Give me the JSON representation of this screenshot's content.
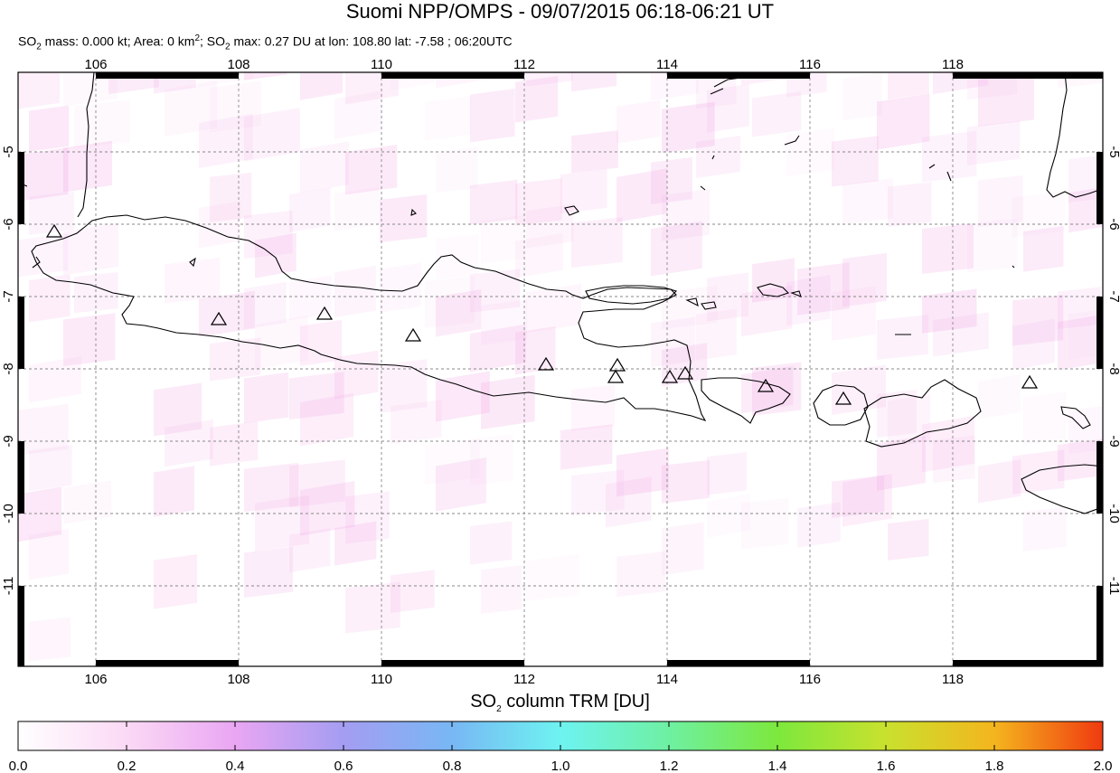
{
  "title": "Suomi NPP/OMPS - 09/07/2015 06:18-06:21 UT",
  "subtitle": {
    "mass_prefix": "SO",
    "mass_sub": "2",
    "mass_text": " mass: 0.000 kt; Area: 0 km",
    "area_sup": "2",
    "max_prefix": "; SO",
    "max_sub": "2",
    "max_text": " max: 0.27 DU at lon: 108.80 lat: -7.58 ; 06:20UTC"
  },
  "map": {
    "lon_labels": [
      "106",
      "108",
      "110",
      "112",
      "114",
      "116",
      "118"
    ],
    "lat_labels": [
      "-5",
      "-6",
      "-7",
      "-8",
      "-9",
      "-10",
      "-11"
    ],
    "volcano_marker": "triangle-icon",
    "land_outline_color": "#000000",
    "grid_color": "#888888"
  },
  "colorbar": {
    "title_prefix": "SO",
    "title_sub": "2",
    "title_text": " column TRM [DU]",
    "tick_labels": [
      "0.0",
      "0.2",
      "0.4",
      "0.6",
      "0.8",
      "1.0",
      "1.2",
      "1.4",
      "1.6",
      "1.8",
      "2.0"
    ],
    "colors": [
      "#ffffff",
      "#fbd9f5",
      "#e9a6f3",
      "#a49df2",
      "#78b7f4",
      "#6ef3f1",
      "#6ef0a2",
      "#7de83d",
      "#c9e12e",
      "#f4b51e",
      "#f03a10"
    ]
  }
}
